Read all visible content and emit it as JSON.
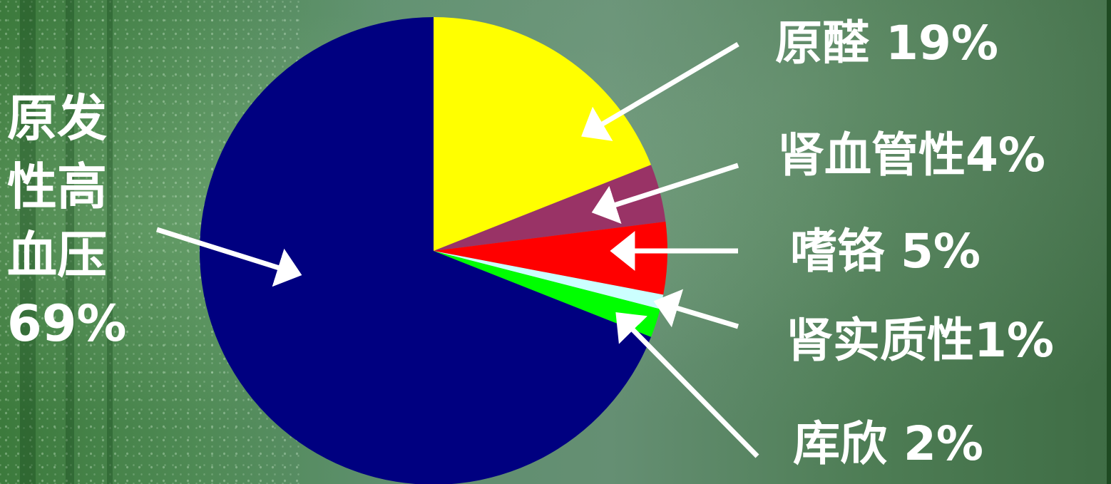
{
  "chart_data": {
    "type": "pie",
    "slices": [
      {
        "label": "原醛 19%",
        "value": 19,
        "color": "#ffff00"
      },
      {
        "label": "肾血管性4%",
        "value": 4,
        "color": "#993366"
      },
      {
        "label": "嗜铬 5%",
        "value": 5,
        "color": "#ff0000"
      },
      {
        "label": "肾实质性1%",
        "value": 1,
        "color": "#ccffff"
      },
      {
        "label": "库欣 2%",
        "value": 2,
        "color": "#00ff00"
      },
      {
        "label": "原发性高血压69%",
        "value": 69,
        "color": "#000080"
      }
    ],
    "start_angle": "12 o'clock",
    "direction": "clockwise"
  },
  "labels": {
    "aldosteronism": "原醛 19%",
    "renovascular": "肾血管性4%",
    "pheochromocytoma": "嗜铬 5%",
    "renal_parenchymal": "肾实质性1%",
    "cushing": "库欣 2%",
    "essential_hypertension": "原发性高血压69%"
  },
  "colors": {
    "background": "#5e8f6e",
    "label_text": "#ffffff",
    "arrow": "#ffffff"
  }
}
